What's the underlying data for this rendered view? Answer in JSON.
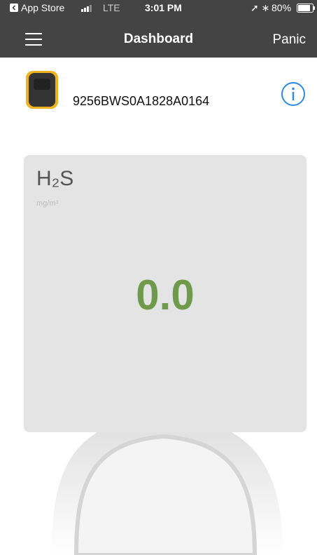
{
  "status_bar": {
    "back_app": "App Store",
    "network": "LTE",
    "time": "3:01 PM",
    "battery": "80%"
  },
  "nav_bar": {
    "title": "Dashboard",
    "right_button": "Panic"
  },
  "device": {
    "serial": "9256BWS0A1828A0164"
  },
  "card": {
    "gas": "H₂S",
    "unit": "mg/m³",
    "reading": "0.0"
  }
}
